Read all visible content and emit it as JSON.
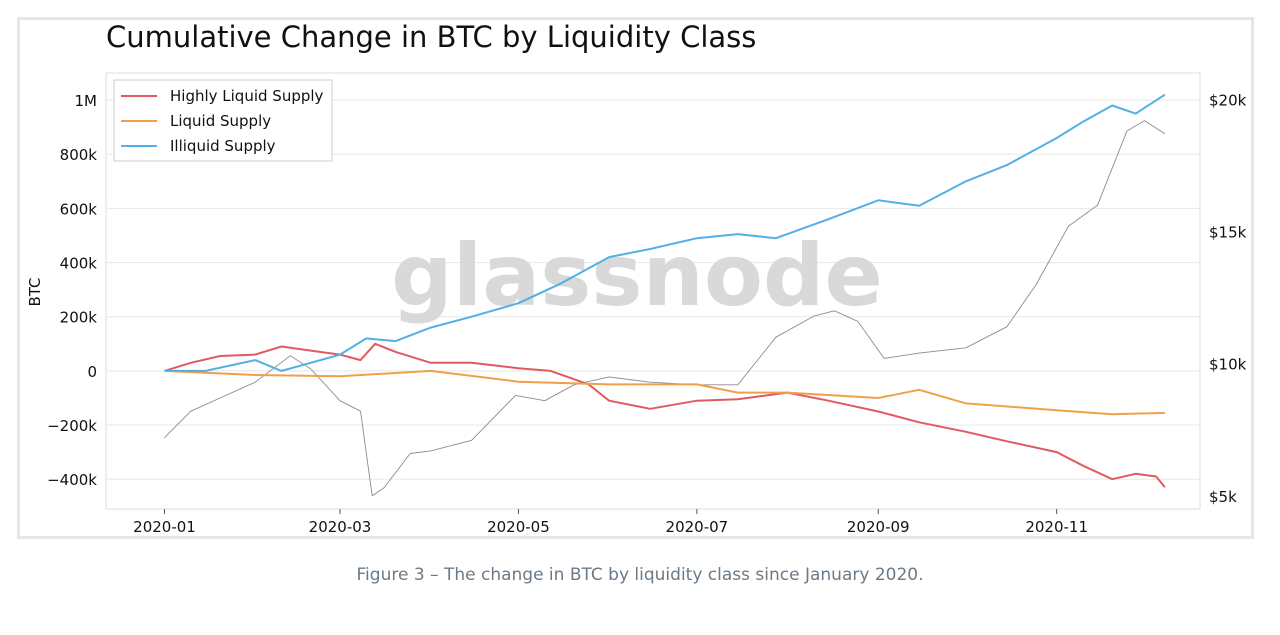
{
  "chart_data": {
    "type": "line",
    "title": "Cumulative Change in BTC by Liquidity Class",
    "ylabel": "BTC",
    "y2label": "",
    "watermark": "glassnode",
    "caption": "Figure 3 – The change in BTC by liquidity class since January 2020.",
    "xlim": [
      "2019-12-12",
      "2020-12-20"
    ],
    "ylim": [
      -510000,
      1100000
    ],
    "y2lim": [
      4500,
      21000
    ],
    "x_ticks": [
      {
        "date": "2020-01-01",
        "label": "2020-01"
      },
      {
        "date": "2020-03-01",
        "label": "2020-03"
      },
      {
        "date": "2020-05-01",
        "label": "2020-05"
      },
      {
        "date": "2020-07-01",
        "label": "2020-07"
      },
      {
        "date": "2020-09-01",
        "label": "2020-09"
      },
      {
        "date": "2020-11-01",
        "label": "2020-11"
      }
    ],
    "y_ticks": [
      {
        "value": 1000000,
        "label": "1M"
      },
      {
        "value": 800000,
        "label": "800k"
      },
      {
        "value": 600000,
        "label": "600k"
      },
      {
        "value": 400000,
        "label": "400k"
      },
      {
        "value": 200000,
        "label": "200k"
      },
      {
        "value": 0,
        "label": "0"
      },
      {
        "value": -200000,
        "label": "−200k"
      },
      {
        "value": -400000,
        "label": "−400k"
      }
    ],
    "y2_ticks": [
      {
        "value": 20000,
        "label": "$20k"
      },
      {
        "value": 15000,
        "label": "$15k"
      },
      {
        "value": 10000,
        "label": "$10k"
      },
      {
        "value": 5000,
        "label": "$5k"
      }
    ],
    "grid": true,
    "legend_position": "top-left",
    "series": [
      {
        "name": "Highly Liquid Supply",
        "color": "#e05a62",
        "axis": "left",
        "x": [
          "2020-01-01",
          "2020-01-10",
          "2020-01-20",
          "2020-02-01",
          "2020-02-10",
          "2020-02-20",
          "2020-03-01",
          "2020-03-08",
          "2020-03-13",
          "2020-03-20",
          "2020-04-01",
          "2020-04-15",
          "2020-05-01",
          "2020-05-12",
          "2020-05-25",
          "2020-06-01",
          "2020-06-15",
          "2020-07-01",
          "2020-07-15",
          "2020-08-01",
          "2020-08-15",
          "2020-09-01",
          "2020-09-15",
          "2020-10-01",
          "2020-10-15",
          "2020-11-01",
          "2020-11-10",
          "2020-11-20",
          "2020-11-28",
          "2020-12-05",
          "2020-12-08"
        ],
        "values": [
          0,
          30000,
          55000,
          60000,
          90000,
          75000,
          60000,
          40000,
          100000,
          70000,
          30000,
          30000,
          10000,
          0,
          -50000,
          -110000,
          -140000,
          -110000,
          -105000,
          -80000,
          -110000,
          -150000,
          -190000,
          -225000,
          -260000,
          -300000,
          -350000,
          -400000,
          -380000,
          -390000,
          -430000
        ]
      },
      {
        "name": "Liquid Supply",
        "color": "#f0a04b",
        "axis": "left",
        "x": [
          "2020-01-01",
          "2020-02-01",
          "2020-03-01",
          "2020-04-01",
          "2020-05-01",
          "2020-06-01",
          "2020-07-01",
          "2020-07-15",
          "2020-08-01",
          "2020-09-01",
          "2020-09-15",
          "2020-10-01",
          "2020-11-01",
          "2020-11-20",
          "2020-12-08"
        ],
        "values": [
          0,
          -15000,
          -20000,
          0,
          -40000,
          -50000,
          -50000,
          -80000,
          -80000,
          -100000,
          -70000,
          -120000,
          -145000,
          -160000,
          -155000
        ]
      },
      {
        "name": "Illiquid Supply",
        "color": "#52b0e6",
        "axis": "left",
        "x": [
          "2020-01-01",
          "2020-01-15",
          "2020-02-01",
          "2020-02-10",
          "2020-02-20",
          "2020-03-01",
          "2020-03-10",
          "2020-03-20",
          "2020-04-01",
          "2020-04-15",
          "2020-05-01",
          "2020-05-15",
          "2020-06-01",
          "2020-06-15",
          "2020-07-01",
          "2020-07-15",
          "2020-07-28",
          "2020-08-15",
          "2020-09-01",
          "2020-09-15",
          "2020-10-01",
          "2020-10-15",
          "2020-11-01",
          "2020-11-10",
          "2020-11-20",
          "2020-11-28",
          "2020-12-08"
        ],
        "values": [
          0,
          0,
          40000,
          0,
          30000,
          60000,
          120000,
          110000,
          160000,
          200000,
          250000,
          320000,
          420000,
          450000,
          490000,
          505000,
          490000,
          560000,
          630000,
          610000,
          700000,
          760000,
          860000,
          920000,
          980000,
          950000,
          1020000
        ]
      },
      {
        "name": "",
        "color": "#8c8c8c",
        "axis": "right",
        "x": [
          "2020-01-01",
          "2020-01-10",
          "2020-01-20",
          "2020-02-01",
          "2020-02-13",
          "2020-02-20",
          "2020-03-01",
          "2020-03-08",
          "2020-03-12",
          "2020-03-16",
          "2020-03-25",
          "2020-04-01",
          "2020-04-15",
          "2020-04-30",
          "2020-05-10",
          "2020-05-20",
          "2020-06-01",
          "2020-06-15",
          "2020-07-01",
          "2020-07-15",
          "2020-07-28",
          "2020-08-10",
          "2020-08-17",
          "2020-08-25",
          "2020-09-03",
          "2020-09-15",
          "2020-10-01",
          "2020-10-15",
          "2020-10-25",
          "2020-11-05",
          "2020-11-15",
          "2020-11-25",
          "2020-12-01",
          "2020-12-08"
        ],
        "values": [
          7200,
          8200,
          8700,
          9300,
          10300,
          9800,
          8600,
          8200,
          5000,
          5300,
          6600,
          6700,
          7100,
          8800,
          8600,
          9200,
          9500,
          9300,
          9200,
          9200,
          11000,
          11800,
          12000,
          11600,
          10200,
          10400,
          10600,
          11400,
          13000,
          15200,
          16000,
          18800,
          19200,
          18700
        ]
      }
    ]
  }
}
